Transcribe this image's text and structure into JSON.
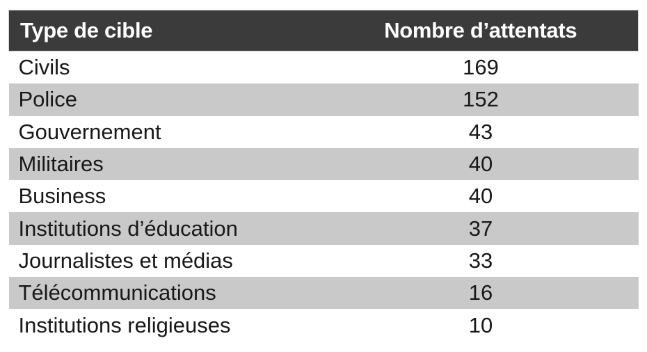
{
  "chart_data": {
    "type": "table",
    "columns": [
      {
        "key": "target",
        "label": "Type de cible",
        "align": "left"
      },
      {
        "key": "count",
        "label": "Nombre d’attentats",
        "align": "center"
      }
    ],
    "rows": [
      {
        "target": "Civils",
        "count": 169
      },
      {
        "target": "Police",
        "count": 152
      },
      {
        "target": "Gouvernement",
        "count": 43
      },
      {
        "target": "Militaires",
        "count": 40
      },
      {
        "target": "Business",
        "count": 40
      },
      {
        "target": "Institutions d’éducation",
        "count": 37
      },
      {
        "target": "Journalistes et médias",
        "count": 33
      },
      {
        "target": "Télécommunications",
        "count": 16
      },
      {
        "target": "Institutions religieuses",
        "count": 10
      }
    ],
    "layout_hints": {
      "header_style": "dark-inverse",
      "zebra_striping": true,
      "value_alignment": "center"
    }
  },
  "colors": {
    "header_bg": "#3b3b3b",
    "header_text": "#ffffff",
    "header_outline": "#d2d2d2",
    "row_alt_bg": "#c9c9c9",
    "row_bg": "#ffffff",
    "body_text": "#181818",
    "page_bg": "#ffffff"
  }
}
